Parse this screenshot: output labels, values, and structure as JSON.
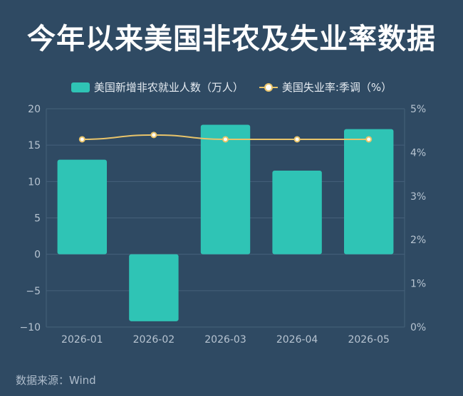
{
  "title": "今年以来美国非农及失业率数据",
  "source": "数据来源：Wind",
  "colors": {
    "bar": "#2fc4b5",
    "line": "#e9c46a",
    "grid": "#46617a",
    "text": "#b7c4d1"
  },
  "chart_data": {
    "type": "bar",
    "categories": [
      "2026-01",
      "2026-02",
      "2026-03",
      "2026-04",
      "2026-05"
    ],
    "series": [
      {
        "name": "美国新增非农就业人数（万人）",
        "type": "bar",
        "axis": "left",
        "values": [
          13.0,
          -9.2,
          17.8,
          11.5,
          17.2
        ]
      },
      {
        "name": "美国失业率:季调（%）",
        "type": "line",
        "axis": "right",
        "values": [
          4.3,
          4.4,
          4.3,
          4.3,
          4.3
        ]
      }
    ],
    "ylim_left": [
      -10,
      20
    ],
    "yticks_left": [
      "−10",
      "−5",
      "0",
      "5",
      "10",
      "15",
      "20"
    ],
    "ylim_right": [
      0,
      5
    ],
    "yticks_right": [
      "0%",
      "1%",
      "2%",
      "3%",
      "4%",
      "5%"
    ],
    "grid": true,
    "legend": "top-center"
  }
}
